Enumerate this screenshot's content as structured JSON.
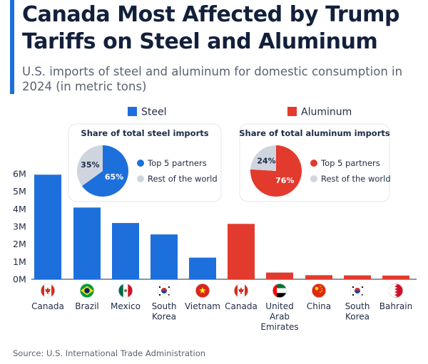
{
  "title": "Canada Most Affected by Trump Tariffs on Steel and Aluminum",
  "subtitle": "U.S. imports of steel and aluminum for domestic consumption in 2024 (in metric tons)",
  "source": "Source: U.S. International Trade Administration",
  "colors": {
    "steel": "#1d6fdc",
    "aluminum": "#e33a2e",
    "rest": "#cfd5df",
    "accent": "#1d6fdc"
  },
  "chart_data": [
    {
      "type": "bar",
      "ylim": [
        0,
        6000000
      ],
      "yticks": [
        {
          "value": 0,
          "label": "0M"
        },
        {
          "value": 1000000,
          "label": "1M"
        },
        {
          "value": 2000000,
          "label": "2M"
        },
        {
          "value": 3000000,
          "label": "3M"
        },
        {
          "value": 4000000,
          "label": "4M"
        },
        {
          "value": 5000000,
          "label": "5M"
        },
        {
          "value": 6000000,
          "label": "6M"
        }
      ],
      "legend": "top",
      "series": [
        {
          "name": "Steel",
          "color": "#1d6fdc",
          "categories": [
            "Canada",
            "Brazil",
            "Mexico",
            "South Korea",
            "Vietnam"
          ],
          "values": [
            5950000,
            4080000,
            3200000,
            2550000,
            1230000
          ]
        },
        {
          "name": "Aluminum",
          "color": "#e33a2e",
          "categories": [
            "Canada",
            "United Arab Emirates",
            "China",
            "South Korea",
            "Bahrain"
          ],
          "values": [
            3150000,
            380000,
            230000,
            220000,
            210000
          ]
        }
      ],
      "category_labels": [
        {
          "lines": [
            "Canada"
          ],
          "flag": "canada-flag-icon"
        },
        {
          "lines": [
            "Brazil"
          ],
          "flag": "brazil-flag-icon"
        },
        {
          "lines": [
            "Mexico"
          ],
          "flag": "mexico-flag-icon"
        },
        {
          "lines": [
            "South",
            "Korea"
          ],
          "flag": "south-korea-flag-icon"
        },
        {
          "lines": [
            "Vietnam"
          ],
          "flag": "vietnam-flag-icon"
        },
        {
          "lines": [
            "Canada"
          ],
          "flag": "canada-flag-icon"
        },
        {
          "lines": [
            "United",
            "Arab",
            "Emirates"
          ],
          "flag": "uae-flag-icon"
        },
        {
          "lines": [
            "China"
          ],
          "flag": "china-flag-icon"
        },
        {
          "lines": [
            "South",
            "Korea"
          ],
          "flag": "south-korea-flag-icon"
        },
        {
          "lines": [
            "Bahrain"
          ],
          "flag": "bahrain-flag-icon"
        }
      ]
    },
    {
      "type": "pie",
      "title": "Share of total steel imports",
      "slices": [
        {
          "label": "Top 5 partners",
          "value": 65,
          "text": "65%",
          "color": "#1d6fdc"
        },
        {
          "label": "Rest of the world",
          "value": 35,
          "text": "35%",
          "color": "#cfd5df"
        }
      ]
    },
    {
      "type": "pie",
      "title": "Share of total aluminum imports",
      "slices": [
        {
          "label": "Top 5 partners",
          "value": 76,
          "text": "76%",
          "color": "#e33a2e"
        },
        {
          "label": "Rest of the world",
          "value": 24,
          "text": "24%",
          "color": "#cfd5df"
        }
      ]
    }
  ]
}
